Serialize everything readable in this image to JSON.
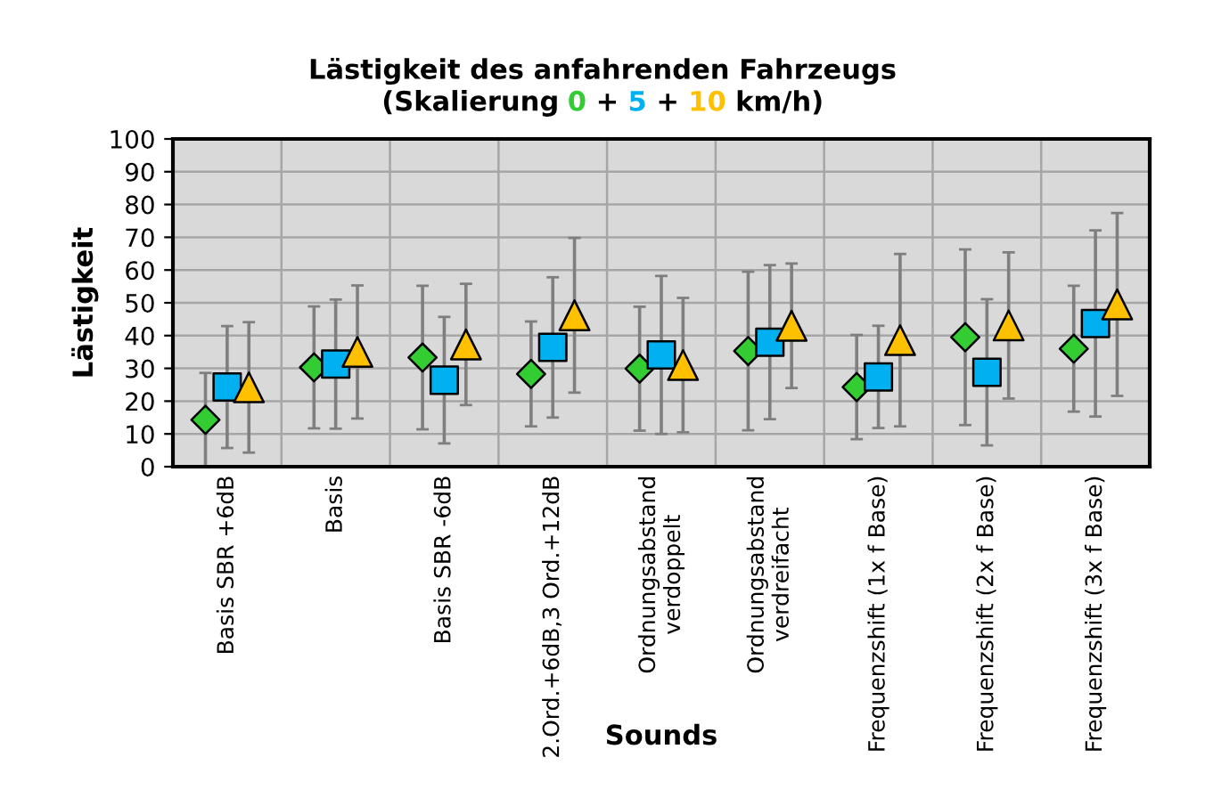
{
  "chart_data": {
    "type": "scatter",
    "title": "Lästigkeit des anfahrenden Fahrzeugs",
    "subtitle": "(Skalierung 0 + 5 + 10 km/h)",
    "xlabel": "Sounds",
    "ylabel": "Lästigkeit",
    "categories": [
      "Basis SBR +6dB",
      "Basis",
      "Basis SBR -6dB",
      "2.Ord.+6dB,3 Ord.+12dB",
      "Ordnungsabstand\nverdoppelt",
      "Ordnungsabstand\nverdreifacht",
      "Frequenzshift (1x f Base)",
      "Frequenzshift (2x f Base)",
      "Frequenzshift (3x f Base)"
    ],
    "series": [
      {
        "color": "#33cc33",
        "marker": "diamond",
        "values": [
          14.3,
          30.3,
          33.3,
          28.3,
          29.9,
          35.3,
          24.3,
          39.5,
          36
        ],
        "errors": [
          14.3,
          18.6,
          21.9,
          16,
          18.9,
          24.2,
          15.9,
          26.8,
          19.2
        ]
      },
      {
        "color": "#00b0f0",
        "marker": "square",
        "values": [
          24.3,
          31.3,
          26.4,
          36.4,
          34.1,
          38,
          27.4,
          28.8,
          43.7
        ],
        "errors": [
          18.6,
          19.7,
          19.3,
          21.4,
          24.1,
          23.5,
          15.6,
          22.3,
          28.4
        ]
      },
      {
        "color": "#ffc000",
        "marker": "triangle",
        "values": [
          24.2,
          35,
          37.3,
          46.2,
          31,
          43,
          38.6,
          43.1,
          49.5
        ],
        "errors": [
          19.9,
          20.3,
          18.5,
          23.6,
          20.5,
          19,
          26.3,
          22.3,
          27.9
        ]
      }
    ],
    "ylim": [
      0,
      100
    ],
    "yticks": [
      0,
      10,
      20,
      30,
      40,
      50,
      60,
      70,
      80,
      90,
      100
    ],
    "grid": true,
    "legend": false
  }
}
